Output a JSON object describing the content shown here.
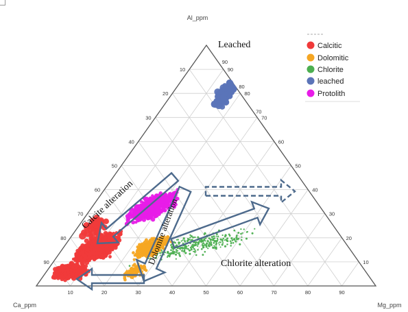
{
  "chart_data": {
    "type": "scatter",
    "subtype": "ternary",
    "apex_labels": {
      "top": "Al_ppm",
      "left": "Ca_ppm",
      "right": "Mg_ppm"
    },
    "tick_values": [
      10,
      20,
      30,
      40,
      50,
      60,
      70,
      80,
      90
    ],
    "grid": true,
    "legend_position": "top-right",
    "series": [
      {
        "name": "Calcitic",
        "color": "#f03a3a"
      },
      {
        "name": "Dolomitic",
        "color": "#f5a623"
      },
      {
        "name": "Chlorite",
        "color": "#4caf50"
      },
      {
        "name": "leached",
        "color": "#5b74b8"
      },
      {
        "name": "Protolith",
        "color": "#e81ce8"
      }
    ],
    "annotations": {
      "leached": "Leached",
      "calcite": "Calcite alteration",
      "dolomite": "Dolomite alteration",
      "chlorite": "Chlorite alteration"
    }
  }
}
